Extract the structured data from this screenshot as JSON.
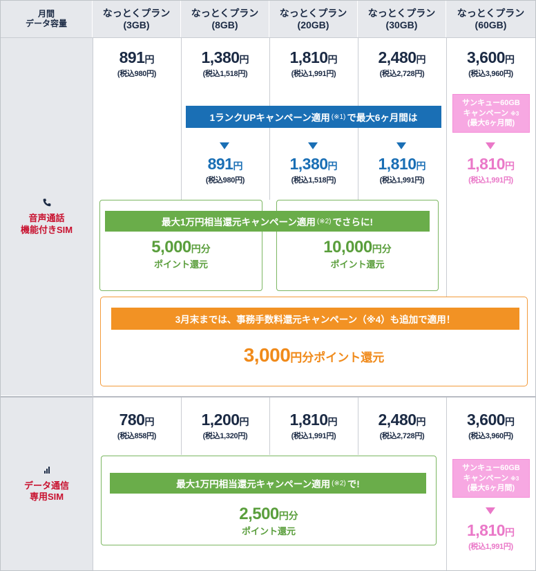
{
  "header": {
    "first_col_line1": "月間",
    "first_col_line2": "データ容量",
    "plans": [
      {
        "name": "なっとくプラン",
        "size": "(3GB)"
      },
      {
        "name": "なっとくプラン",
        "size": "(8GB)"
      },
      {
        "name": "なっとくプラン",
        "size": "(20GB)"
      },
      {
        "name": "なっとくプラン",
        "size": "(30GB)"
      },
      {
        "name": "なっとくプラン",
        "size": "(60GB)"
      }
    ]
  },
  "yen": "円",
  "voice": {
    "label_line1": "音声通話",
    "label_line2": "機能付きSIM",
    "icon": "phone-icon",
    "prices": [
      {
        "price": "891",
        "tax": "(税込980円)"
      },
      {
        "price": "1,380",
        "tax": "(税込1,518円)"
      },
      {
        "price": "1,810",
        "tax": "(税込1,991円)"
      },
      {
        "price": "2,480",
        "tax": "(税込2,728円)"
      },
      {
        "price": "3,600",
        "tax": "(税込3,960円)"
      }
    ],
    "rankup_banner": {
      "text": "1ランクUPキャンペーン適用",
      "note": "(※1)",
      "text2": "で最大6ヶ月間は"
    },
    "rankup_prices": [
      {
        "price": "891",
        "tax": "(税込980円)"
      },
      {
        "price": "1,380",
        "tax": "(税込1,518円)"
      },
      {
        "price": "1,810",
        "tax": "(税込1,991円)"
      }
    ],
    "thankyou": {
      "line1": "サンキュー60GB",
      "line2": "キャンペーン",
      "note": "※3",
      "line3": "(最大6ヶ月間)"
    },
    "thankyou_price": {
      "price": "1,810",
      "tax": "(税込1,991円)"
    },
    "refund_banner": {
      "text": "最大1万円相当還元キャンペーン適用",
      "note": "(※2)",
      "text2": "でさらに!"
    },
    "refund_boxes": [
      {
        "amount": "5,000",
        "unit": "円分",
        "label": "ポイント還元"
      },
      {
        "amount": "10,000",
        "unit": "円分",
        "label": "ポイント還元"
      }
    ],
    "fee_banner": {
      "text": "3月末までは、事務手数料還元キャンペーン（※4）も追加で適用！"
    },
    "fee_amount": "3,000",
    "fee_unit": "円分ポイント還元"
  },
  "data_sim": {
    "label_line1": "データ通信",
    "label_line2": "専用SIM",
    "icon": "signal-icon",
    "prices": [
      {
        "price": "780",
        "tax": "(税込858円)"
      },
      {
        "price": "1,200",
        "tax": "(税込1,320円)"
      },
      {
        "price": "1,810",
        "tax": "(税込1,991円)"
      },
      {
        "price": "2,480",
        "tax": "(税込2,728円)"
      },
      {
        "price": "3,600",
        "tax": "(税込3,960円)"
      }
    ],
    "refund_banner": {
      "text": "最大1万円相当還元キャンペーン適用",
      "note": "(※2)",
      "text2": "で!"
    },
    "refund_box": {
      "amount": "2,500",
      "unit": "円分",
      "label": "ポイント還元"
    },
    "thankyou": {
      "line1": "サンキュー60GB",
      "line2": "キャンペーン",
      "note": "※3",
      "line3": "(最大6ヶ月間)"
    },
    "thankyou_price": {
      "price": "1,810",
      "tax": "(税込1,991円)"
    }
  },
  "colors": {
    "navy": "#1b2a44",
    "blue": "#1a6fb5",
    "pink": "#ea78c8",
    "green": "#6aad4a",
    "orange": "#f29224",
    "red": "#c8102e"
  }
}
